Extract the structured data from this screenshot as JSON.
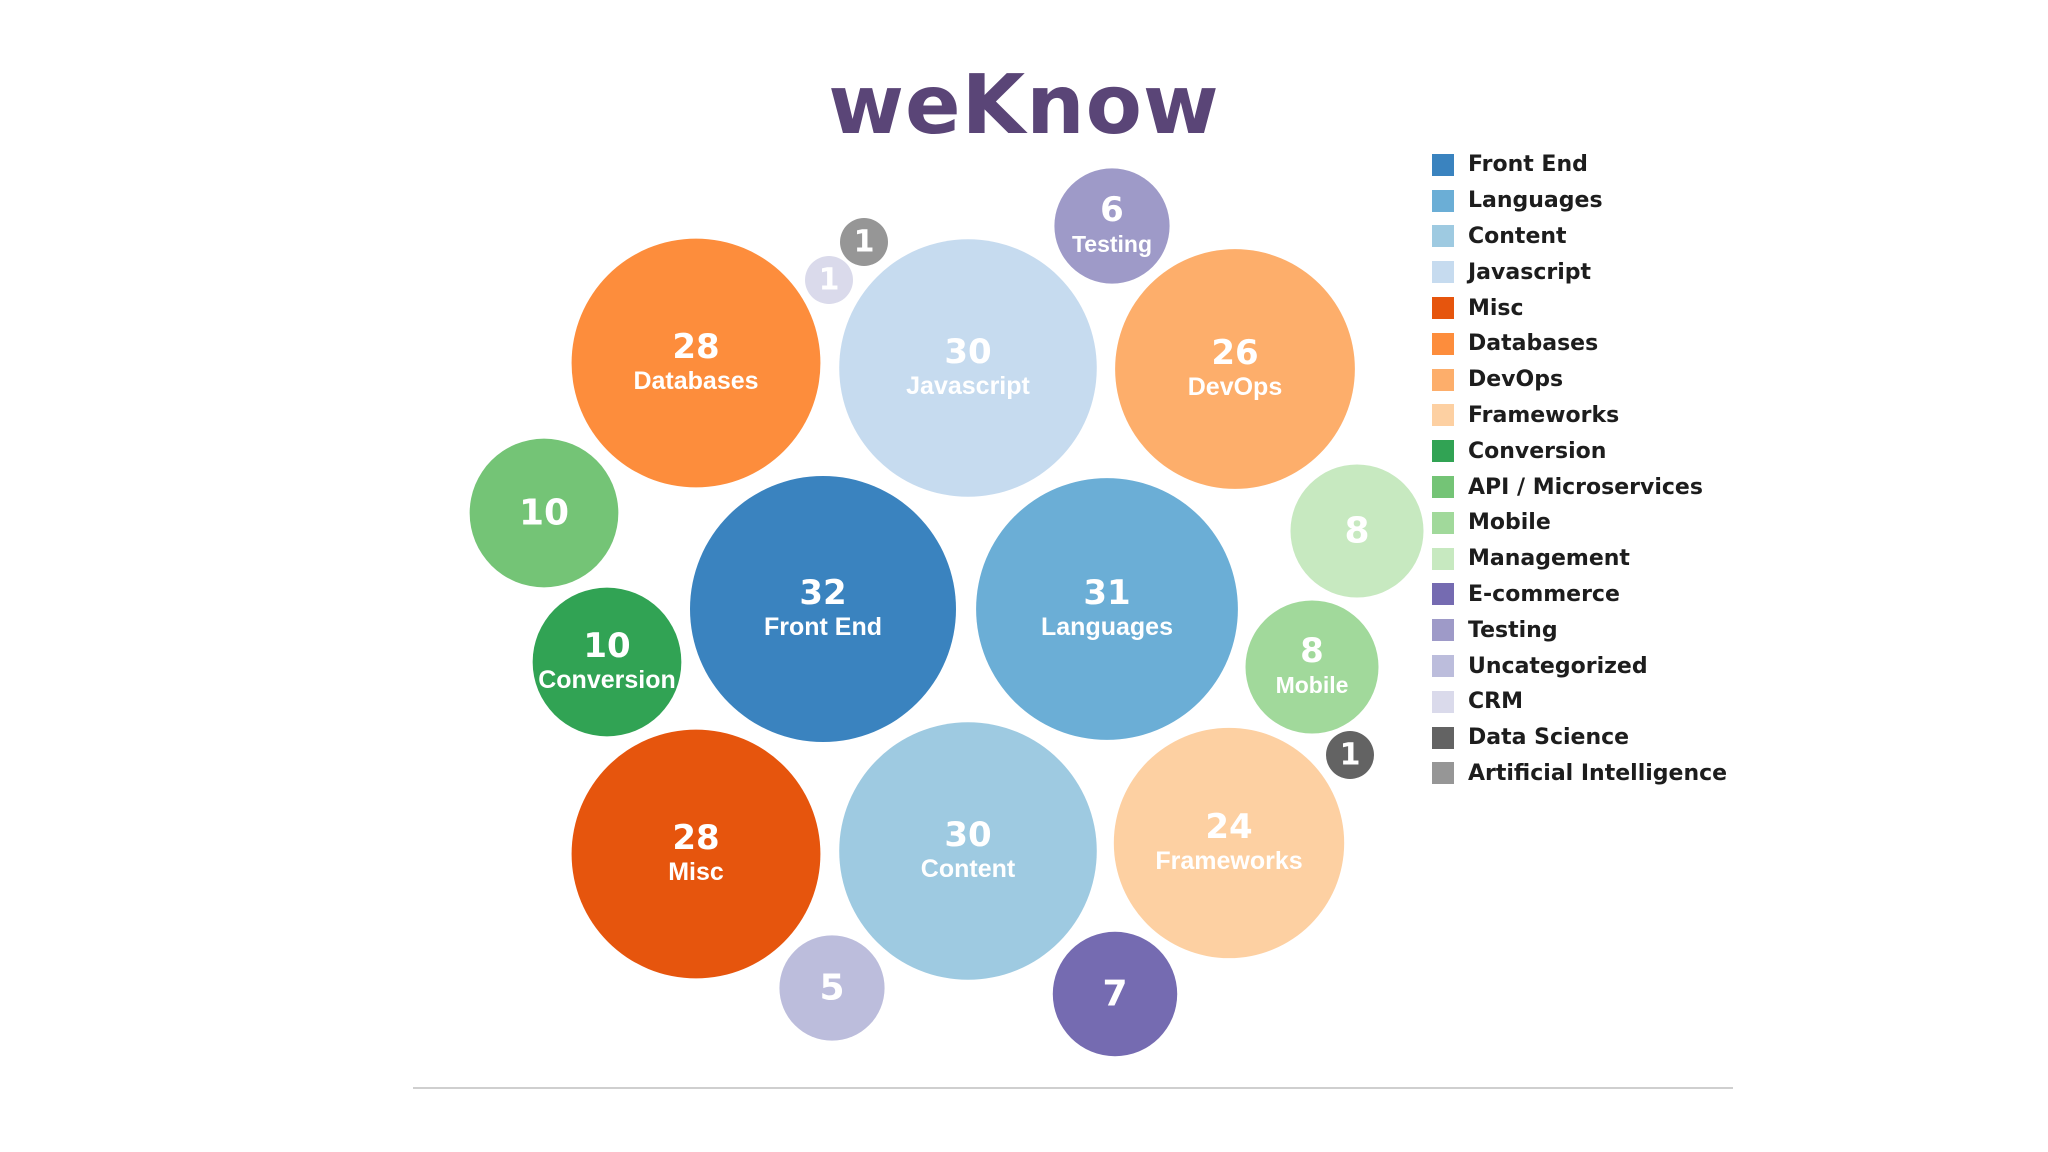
{
  "brand": {
    "name": "weKnow"
  },
  "chart_data": {
    "type": "bubble",
    "series": [
      {
        "name": "Front End",
        "value": 32,
        "show_label": true,
        "color": "#3a83bf"
      },
      {
        "name": "Languages",
        "value": 31,
        "show_label": true,
        "color": "#6baed6"
      },
      {
        "name": "Javascript",
        "value": 30,
        "show_label": true,
        "color": "#c6dbef"
      },
      {
        "name": "Content",
        "value": 30,
        "show_label": true,
        "color": "#9ecae1"
      },
      {
        "name": "Databases",
        "value": 28,
        "show_label": true,
        "color": "#fd8d3c"
      },
      {
        "name": "Misc",
        "value": 28,
        "show_label": true,
        "color": "#e6550d"
      },
      {
        "name": "DevOps",
        "value": 26,
        "show_label": true,
        "color": "#fdae6b"
      },
      {
        "name": "Frameworks",
        "value": 24,
        "show_label": true,
        "color": "#fdd0a2"
      },
      {
        "name": "Conversion",
        "value": 10,
        "show_label": true,
        "color": "#31a354"
      },
      {
        "name": "API / Microservices",
        "value": 10,
        "show_label": false,
        "color": "#74c476"
      },
      {
        "name": "Management",
        "value": 8,
        "show_label": false,
        "color": "#c7e9c0"
      },
      {
        "name": "Mobile",
        "value": 8,
        "show_label": true,
        "color": "#a1d99b"
      },
      {
        "name": "Testing",
        "value": 6,
        "show_label": true,
        "color": "#9e9ac8"
      },
      {
        "name": "E-commerce",
        "value": 7,
        "show_label": false,
        "color": "#756bb1"
      },
      {
        "name": "Uncategorized",
        "value": 5,
        "show_label": false,
        "color": "#bcbddc"
      },
      {
        "name": "CRM",
        "value": 1,
        "show_label": false,
        "color": "#dadaeb"
      },
      {
        "name": "Artificial Intelligence",
        "value": 1,
        "show_label": false,
        "color": "#969696"
      },
      {
        "name": "Data Science",
        "value": 1,
        "show_label": false,
        "color": "#636363"
      }
    ],
    "legend": {
      "placement": "right",
      "entries": [
        {
          "label": "Front End",
          "color": "#3a83bf"
        },
        {
          "label": "Languages",
          "color": "#6baed6"
        },
        {
          "label": "Content",
          "color": "#9ecae1"
        },
        {
          "label": "Javascript",
          "color": "#c6dbef"
        },
        {
          "label": "Misc",
          "color": "#e6550d"
        },
        {
          "label": "Databases",
          "color": "#fd8d3c"
        },
        {
          "label": "DevOps",
          "color": "#fdae6b"
        },
        {
          "label": "Frameworks",
          "color": "#fdd0a2"
        },
        {
          "label": "Conversion",
          "color": "#31a354"
        },
        {
          "label": "API / Microservices",
          "color": "#74c476"
        },
        {
          "label": "Mobile",
          "color": "#a1d99b"
        },
        {
          "label": "Management",
          "color": "#c7e9c0"
        },
        {
          "label": "E-commerce",
          "color": "#756bb1"
        },
        {
          "label": "Testing",
          "color": "#9e9ac8"
        },
        {
          "label": "Uncategorized",
          "color": "#bcbddc"
        },
        {
          "label": "CRM",
          "color": "#dadaeb"
        },
        {
          "label": "Data Science",
          "color": "#636363"
        },
        {
          "label": "Artificial Intelligence",
          "color": "#969696"
        }
      ]
    }
  }
}
